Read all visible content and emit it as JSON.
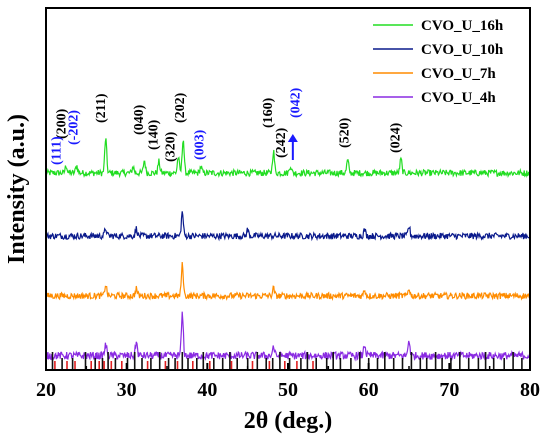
{
  "chart_data": {
    "type": "line",
    "xlabel": "2θ (deg.)",
    "ylabel": "Intensity (a.u.)",
    "xlim": [
      20,
      80
    ],
    "xticks": [
      "20",
      "30",
      "40",
      "50",
      "60",
      "70",
      "80"
    ],
    "grid": false,
    "legend_position": "top-right",
    "series": [
      {
        "name": "CVO_U_16h",
        "color": "#22dd22",
        "baseline": 3.0,
        "noise": 0.05,
        "peaks": [
          [
            22.5,
            0.12
          ],
          [
            23.8,
            0.12
          ],
          [
            27.4,
            0.55
          ],
          [
            30.8,
            0.1
          ],
          [
            32.2,
            0.2
          ],
          [
            34.0,
            0.18
          ],
          [
            36.4,
            0.25
          ],
          [
            37.0,
            0.55
          ],
          [
            39.2,
            0.1
          ],
          [
            48.2,
            0.35
          ],
          [
            50.3,
            0.12
          ],
          [
            57.4,
            0.2
          ],
          [
            64.0,
            0.22
          ]
        ]
      },
      {
        "name": "CVO_U_10h",
        "color": "#0a1a8c",
        "baseline": 2.0,
        "noise": 0.05,
        "peaks": [
          [
            27.4,
            0.12
          ],
          [
            31.2,
            0.12
          ],
          [
            36.9,
            0.38
          ],
          [
            45.0,
            0.1
          ],
          [
            59.5,
            0.1
          ],
          [
            65.0,
            0.15
          ]
        ]
      },
      {
        "name": "CVO_U_7h",
        "color": "#ff8c00",
        "baseline": 1.05,
        "noise": 0.05,
        "peaks": [
          [
            27.4,
            0.18
          ],
          [
            31.2,
            0.12
          ],
          [
            36.9,
            0.5
          ],
          [
            48.2,
            0.12
          ],
          [
            59.5,
            0.1
          ],
          [
            65.0,
            0.12
          ]
        ]
      },
      {
        "name": "CVO_U_4h",
        "color": "#8a2be2",
        "baseline": 0.1,
        "noise": 0.06,
        "peaks": [
          [
            27.4,
            0.18
          ],
          [
            31.2,
            0.22
          ],
          [
            36.9,
            0.65
          ],
          [
            48.2,
            0.15
          ],
          [
            59.5,
            0.18
          ],
          [
            65.0,
            0.25
          ]
        ]
      }
    ],
    "reference_bars": [
      {
        "color": "#111111",
        "positions": [
          20.8,
          22.0,
          23.3,
          24.9,
          26.1,
          27.0,
          27.7,
          28.6,
          30.1,
          31.0,
          31.9,
          33.0,
          34.1,
          35.2,
          36.0,
          36.9,
          37.6,
          38.7,
          39.5,
          40.8,
          41.9,
          42.8,
          43.7,
          45.0,
          46.2,
          47.3,
          48.1,
          49.0,
          50.2,
          51.6,
          52.4,
          53.5,
          54.8,
          55.6,
          56.5,
          57.8,
          58.9,
          60.0,
          61.1,
          62.0,
          63.1,
          64.2,
          65.3,
          66.4,
          67.2,
          68.3,
          69.1,
          70.2,
          71.3,
          72.4,
          73.6,
          74.5,
          75.5,
          76.8,
          77.9,
          79.0
        ]
      },
      {
        "color": "#e02020",
        "positions": [
          21.1,
          22.6,
          23.6,
          25.6,
          26.6,
          27.2,
          28.1,
          29.4,
          32.6,
          34.8,
          36.3,
          38.2,
          40.3,
          43.0,
          45.6,
          47.7,
          49.6,
          51.1,
          53.1
        ]
      }
    ],
    "annotations": [
      {
        "text": "(200)",
        "x": 22.4,
        "color": "#000000"
      },
      {
        "text": "(111)",
        "x": 21.8,
        "color": "#1a1aff"
      },
      {
        "text": "(-202)",
        "x": 23.9,
        "color": "#1a1aff"
      },
      {
        "text": "(211)",
        "x": 27.3,
        "color": "#000000"
      },
      {
        "text": "(040)",
        "x": 32.0,
        "color": "#000000"
      },
      {
        "text": "(140)",
        "x": 33.8,
        "color": "#000000"
      },
      {
        "text": "(320)",
        "x": 35.9,
        "color": "#000000"
      },
      {
        "text": "(202)",
        "x": 37.1,
        "color": "#000000"
      },
      {
        "text": "(003)",
        "x": 39.5,
        "color": "#1a1aff"
      },
      {
        "text": "(160)",
        "x": 48.0,
        "color": "#000000"
      },
      {
        "text": "(242)",
        "x": 49.6,
        "color": "#000000"
      },
      {
        "text": "(042)",
        "x": 51.4,
        "color": "#1a1aff"
      },
      {
        "text": "(520)",
        "x": 57.5,
        "color": "#000000"
      },
      {
        "text": "(024)",
        "x": 63.8,
        "color": "#000000"
      }
    ]
  }
}
